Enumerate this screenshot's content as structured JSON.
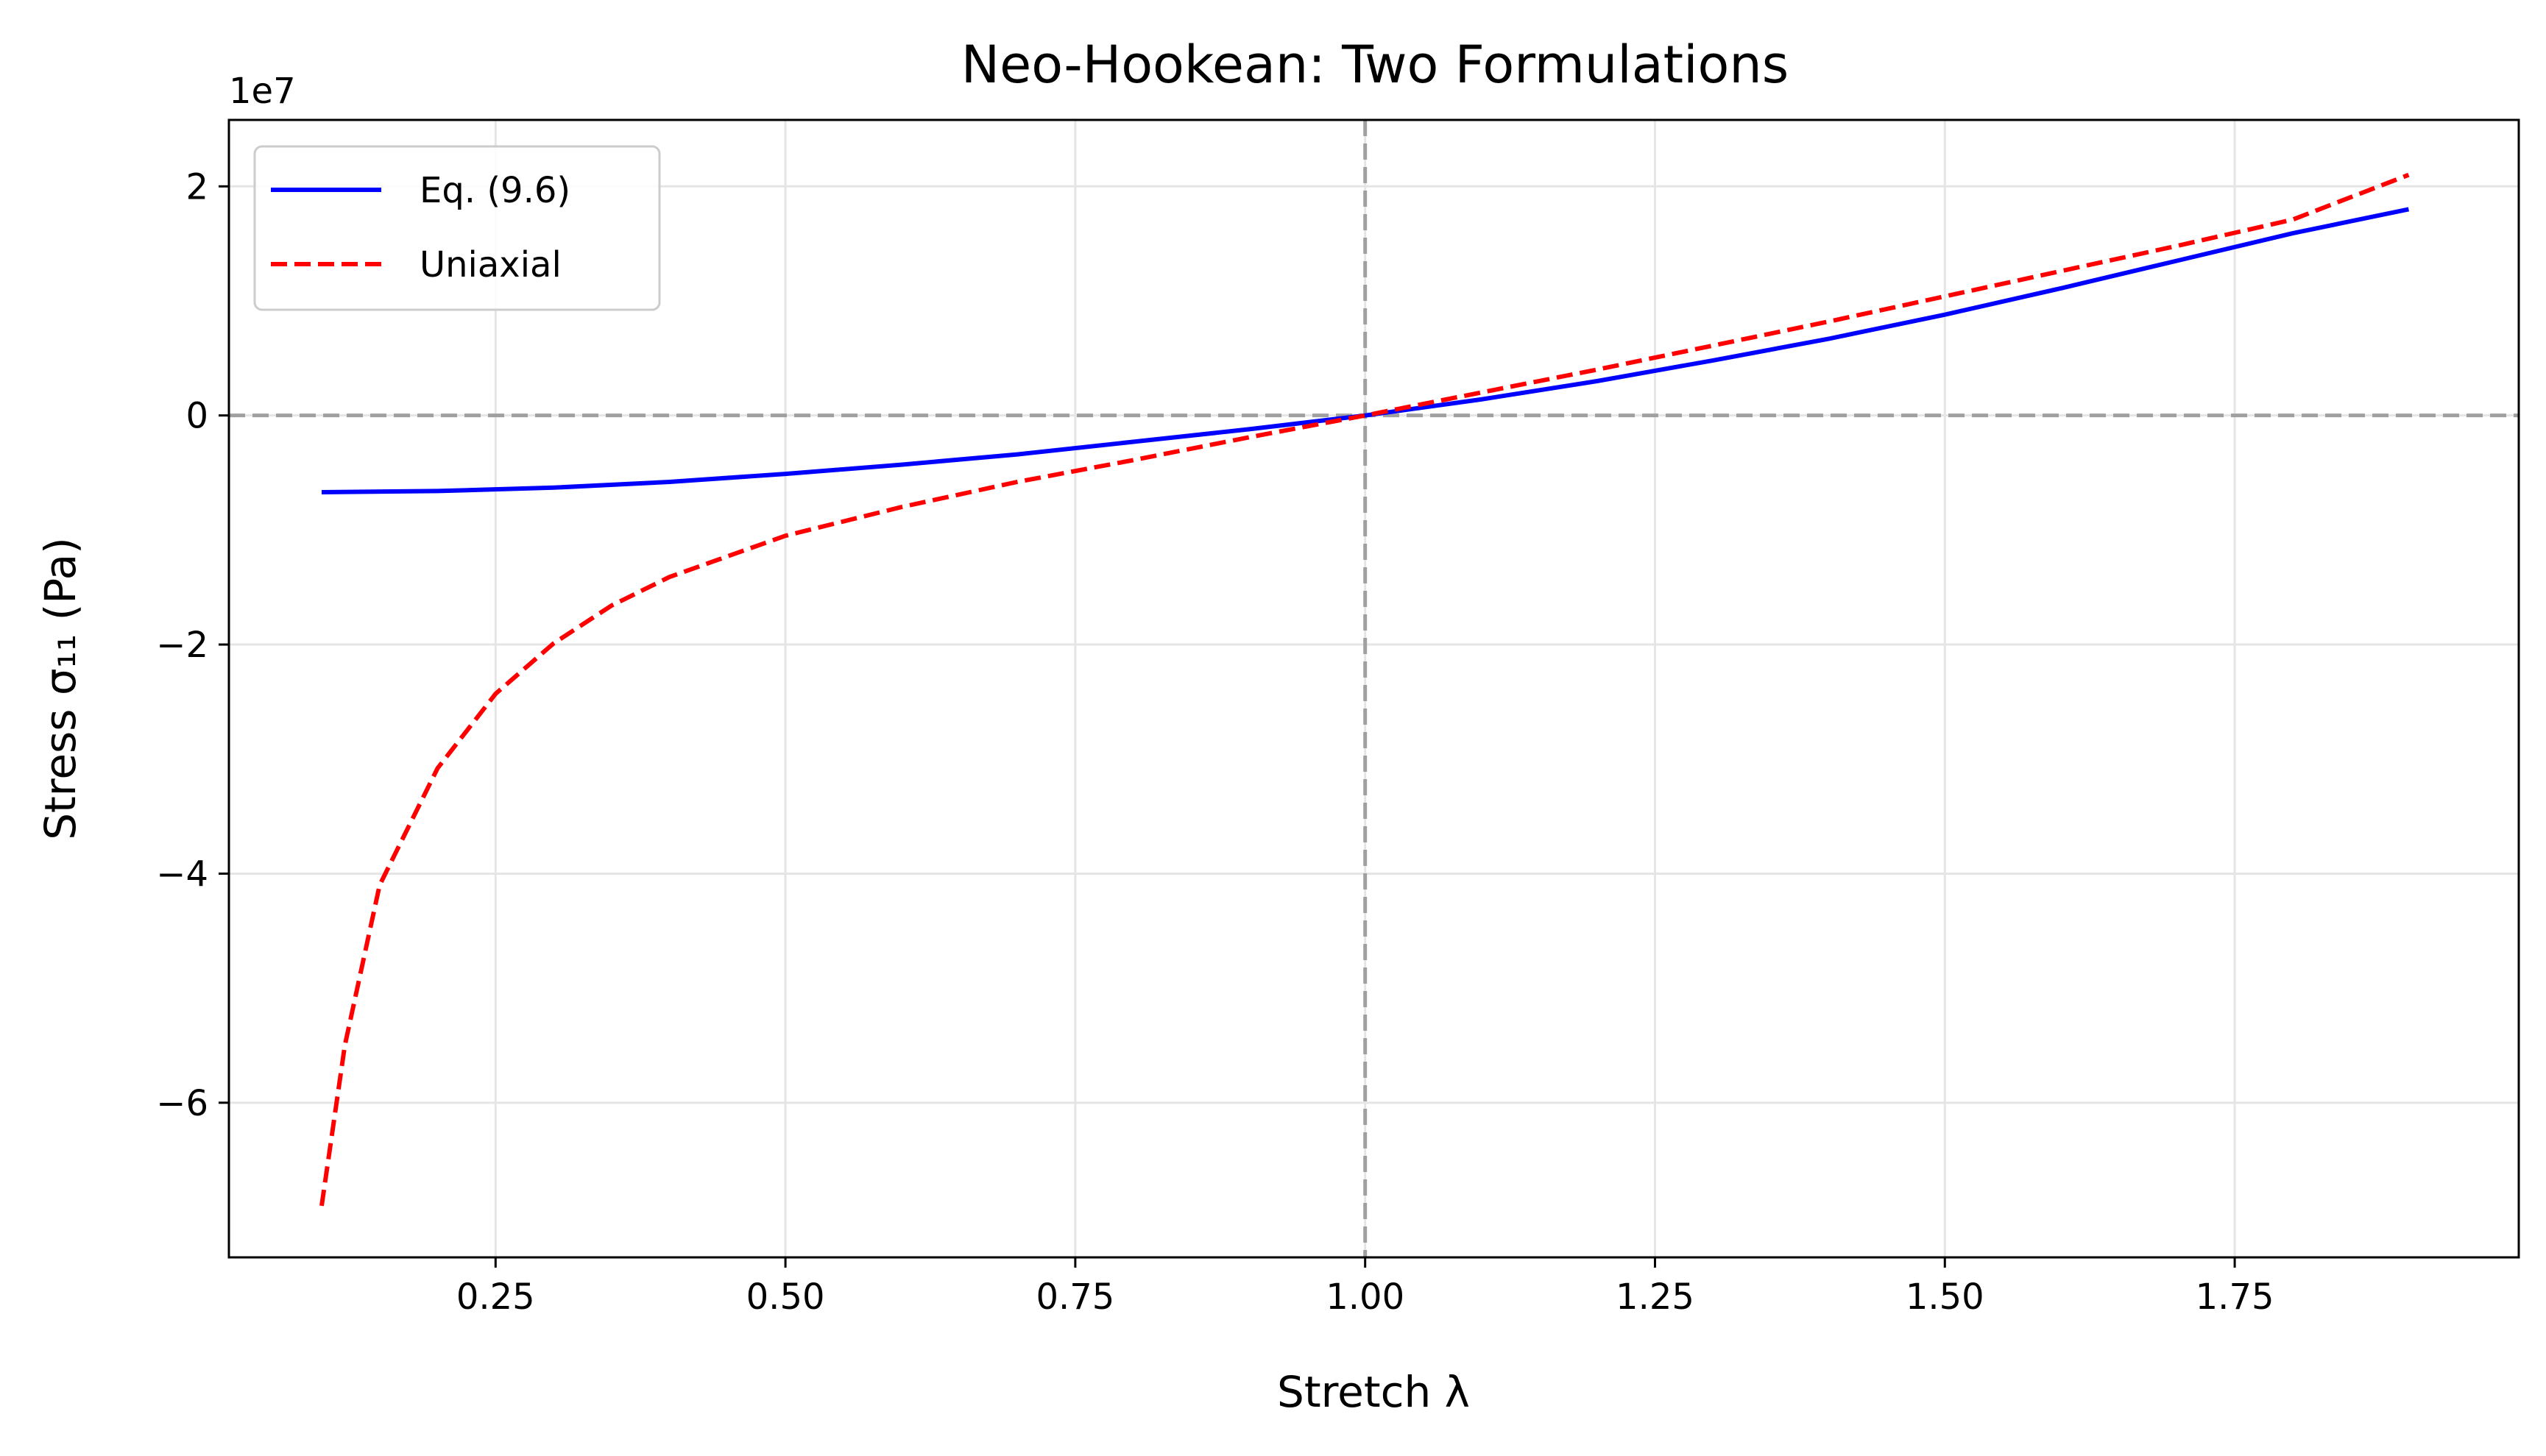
{
  "chart_data": {
    "type": "line",
    "title": "Neo-Hookean: Two Formulations",
    "xlabel": "Stretch λ",
    "ylabel": "Stress σ₁₁ (Pa)",
    "y_offset_label": "1e7",
    "y_scale_factor": 10000000,
    "xlim": [
      0.02,
      1.995
    ],
    "ylim": [
      -73500000,
      25800000
    ],
    "x_ticks": [
      0.25,
      0.5,
      0.75,
      1.0,
      1.25,
      1.5,
      1.75
    ],
    "x_tick_labels": [
      "0.25",
      "0.50",
      "0.75",
      "1.00",
      "1.25",
      "1.50",
      "1.75"
    ],
    "y_ticks": [
      -60000000,
      -40000000,
      -20000000,
      0,
      20000000
    ],
    "y_tick_labels": [
      "−6",
      "−4",
      "−2",
      "0",
      "2"
    ],
    "grid": true,
    "legend_position": "top-left",
    "reference_lines": {
      "x": 1.0,
      "y": 0,
      "color": "#a0a0a0",
      "style": "dashed"
    },
    "series": [
      {
        "name": "Eq. (9.6)",
        "color": "#0000ff",
        "style": "solid",
        "x": [
          0.1,
          0.2,
          0.3,
          0.4,
          0.5,
          0.6,
          0.7,
          0.8,
          0.9,
          1.0,
          1.1,
          1.2,
          1.3,
          1.4,
          1.5,
          1.6,
          1.7,
          1.8,
          1.9
        ],
        "y": [
          -6700000,
          -6600000,
          -6300000,
          -5800000,
          -5100000,
          -4300000,
          -3400000,
          -2300000,
          -1200000,
          0,
          1400000,
          3000000,
          4800000,
          6700000,
          8800000,
          11100000,
          13500000,
          15900000,
          18000000
        ]
      },
      {
        "name": "Uniaxial",
        "color": "#ff0000",
        "style": "dashed",
        "x": [
          0.1,
          0.12,
          0.15,
          0.2,
          0.25,
          0.3,
          0.35,
          0.4,
          0.5,
          0.6,
          0.7,
          0.8,
          0.9,
          1.0,
          1.1,
          1.2,
          1.3,
          1.4,
          1.5,
          1.6,
          1.7,
          1.8,
          1.9
        ],
        "y": [
          -69000000,
          -55000000,
          -41000000,
          -30800000,
          -24300000,
          -19900000,
          -16600000,
          -14100000,
          -10500000,
          -8000000,
          -5800000,
          -3900000,
          -1900000,
          0,
          2000000,
          4000000,
          6100000,
          8200000,
          10400000,
          12600000,
          14800000,
          17100000,
          21000000
        ]
      }
    ]
  }
}
